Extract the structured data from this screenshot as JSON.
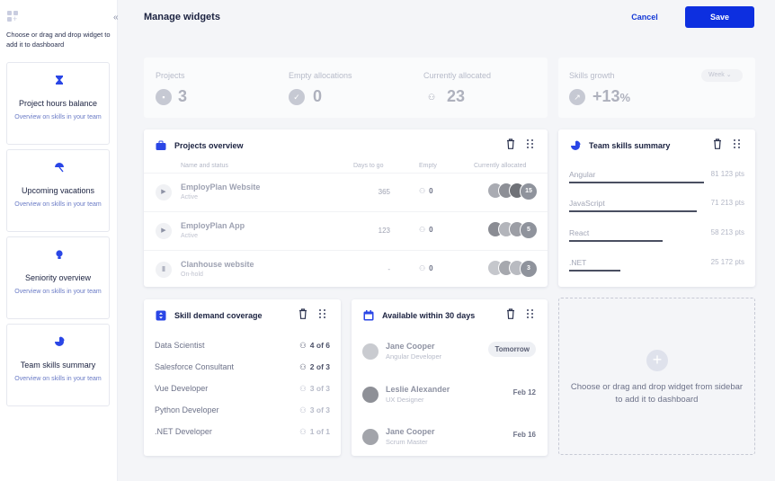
{
  "sidebar": {
    "hint": "Choose or drag and drop widget to add it to dashboard",
    "collapse_icon": "«",
    "widgets": [
      {
        "title": "Project hours balance",
        "desc": "Overview on skills in your team",
        "icon": "hourglass-icon"
      },
      {
        "title": "Upcoming vacations",
        "desc": "Overview on skills in your team",
        "icon": "umbrella-icon"
      },
      {
        "title": "Seniority overview",
        "desc": "Overview on skills in your team",
        "icon": "lightbulb-icon"
      },
      {
        "title": "Team skills summary",
        "desc": "Overview on skills in your team",
        "icon": "pie-icon"
      }
    ]
  },
  "header": {
    "title": "Manage widgets",
    "cancel_label": "Cancel",
    "save_label": "Save"
  },
  "stats": {
    "projects": {
      "label": "Projects",
      "value": "3"
    },
    "empty": {
      "label": "Empty allocations",
      "value": "0"
    },
    "allocated": {
      "label": "Currently allocated",
      "value": "23"
    },
    "growth": {
      "label": "Skills growth",
      "value": "+13",
      "unit": "%",
      "period": "Week"
    }
  },
  "projects_overview": {
    "title": "Projects overview",
    "columns": [
      "Name and status",
      "Days to go",
      "Empty",
      "Currently allocated"
    ],
    "rows": [
      {
        "name": "EmployPlan Website",
        "status": "Active",
        "days": "365",
        "empty": "0",
        "more": "15",
        "state": "play"
      },
      {
        "name": "EmployPlan App",
        "status": "Active",
        "days": "123",
        "empty": "0",
        "more": "5",
        "state": "play"
      },
      {
        "name": "Clanhouse website",
        "status": "On-hold",
        "days": "-",
        "empty": "0",
        "more": "3",
        "state": "pause"
      }
    ]
  },
  "team_skills": {
    "title": "Team skills summary",
    "rows": [
      {
        "name": "Angular",
        "pts": "81 123 pts",
        "level": 0.81
      },
      {
        "name": "JavaScript",
        "pts": "71 213 pts",
        "level": 0.77
      },
      {
        "name": "React",
        "pts": "58 213 pts",
        "level": 0.56
      },
      {
        "name": ".NET",
        "pts": "25 172 pts",
        "level": 0.31
      }
    ]
  },
  "skill_demand": {
    "title": "Skill demand coverage",
    "rows": [
      {
        "name": "Data Scientist",
        "value": "4 of 6",
        "muted": false
      },
      {
        "name": "Salesforce Consultant",
        "value": "2 of 3",
        "muted": false
      },
      {
        "name": "Vue Developer",
        "value": "3 of 3",
        "muted": true
      },
      {
        "name": "Python Developer",
        "value": "3 of 3",
        "muted": true
      },
      {
        "name": ".NET Developer",
        "value": "1 of 1",
        "muted": true
      }
    ]
  },
  "available": {
    "title": "Available within 30 days",
    "rows": [
      {
        "name": "Jane Cooper",
        "role": "Angular Developer",
        "date": "Tomorrow"
      },
      {
        "name": "Leslie Alexander",
        "role": "UX Designer",
        "date": "Feb 12"
      },
      {
        "name": "Jane Cooper",
        "role": "Scrum Master",
        "date": "Feb 16"
      }
    ]
  },
  "dropzone": {
    "text": "Choose or drag and drop widget from sidebar to add it to dashboard"
  },
  "colors": {
    "accent": "#0d2fe0",
    "widget_icon": "#2a46e6"
  }
}
